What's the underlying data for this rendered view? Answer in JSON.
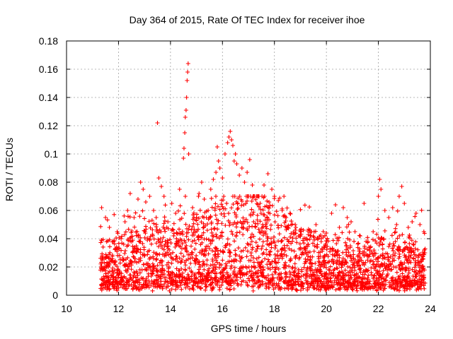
{
  "chart_data": {
    "type": "scatter",
    "title": "Day 364 of 2015, Rate Of TEC Index for receiver ihoe",
    "xlabel": "GPS time / hours",
    "ylabel": "ROTI / TECUs",
    "xlim": [
      10,
      24
    ],
    "ylim": [
      0,
      0.18
    ],
    "xticks": [
      10,
      12,
      14,
      16,
      18,
      20,
      22,
      24
    ],
    "xtick_labels": [
      "10",
      "12",
      "14",
      "16",
      "18",
      "20",
      "22",
      "24"
    ],
    "yticks": [
      0,
      0.02,
      0.04,
      0.06,
      0.08,
      0.1,
      0.12,
      0.14,
      0.16,
      0.18
    ],
    "ytick_labels": [
      "0",
      "0.02",
      "0.04",
      "0.06",
      "0.08",
      "0.1",
      "0.12",
      "0.14",
      "0.16",
      "0.18"
    ],
    "grid": true,
    "marker": "+",
    "marker_color": "#ff0000",
    "series": [
      {
        "name": "ROTI",
        "points": [
          [
            11.35,
            0.062
          ],
          [
            11.5,
            0.055
          ],
          [
            11.65,
            0.048
          ],
          [
            11.8,
            0.038
          ],
          [
            11.95,
            0.045
          ],
          [
            12.1,
            0.04
          ],
          [
            12.25,
            0.052
          ],
          [
            12.35,
            0.06
          ],
          [
            12.45,
            0.072
          ],
          [
            12.6,
            0.055
          ],
          [
            12.75,
            0.068
          ],
          [
            12.85,
            0.08
          ],
          [
            12.95,
            0.075
          ],
          [
            13.05,
            0.066
          ],
          [
            13.2,
            0.07
          ],
          [
            13.35,
            0.06
          ],
          [
            13.45,
            0.055
          ],
          [
            13.5,
            0.122
          ],
          [
            13.55,
            0.083
          ],
          [
            13.65,
            0.077
          ],
          [
            13.75,
            0.07
          ],
          [
            13.9,
            0.052
          ],
          [
            14.05,
            0.065
          ],
          [
            14.2,
            0.058
          ],
          [
            14.35,
            0.075
          ],
          [
            14.5,
            0.097
          ],
          [
            14.52,
            0.104
          ],
          [
            14.55,
            0.115
          ],
          [
            14.57,
            0.126
          ],
          [
            14.6,
            0.131
          ],
          [
            14.62,
            0.14
          ],
          [
            14.64,
            0.152
          ],
          [
            14.66,
            0.158
          ],
          [
            14.68,
            0.164
          ],
          [
            14.7,
            0.1
          ],
          [
            14.85,
            0.062
          ],
          [
            15.0,
            0.055
          ],
          [
            15.1,
            0.072
          ],
          [
            15.2,
            0.08
          ],
          [
            15.3,
            0.068
          ],
          [
            15.45,
            0.06
          ],
          [
            15.55,
            0.075
          ],
          [
            15.65,
            0.082
          ],
          [
            15.75,
            0.087
          ],
          [
            15.8,
            0.105
          ],
          [
            15.85,
            0.095
          ],
          [
            15.9,
            0.09
          ],
          [
            16.0,
            0.083
          ],
          [
            16.1,
            0.1
          ],
          [
            16.2,
            0.108
          ],
          [
            16.25,
            0.112
          ],
          [
            16.3,
            0.116
          ],
          [
            16.35,
            0.11
          ],
          [
            16.4,
            0.106
          ],
          [
            16.45,
            0.095
          ],
          [
            16.5,
            0.1
          ],
          [
            16.55,
            0.093
          ],
          [
            16.65,
            0.085
          ],
          [
            16.75,
            0.09
          ],
          [
            16.85,
            0.08
          ],
          [
            16.95,
            0.087
          ],
          [
            17.05,
            0.096
          ],
          [
            17.15,
            0.078
          ],
          [
            17.3,
            0.07
          ],
          [
            17.45,
            0.065
          ],
          [
            17.6,
            0.078
          ],
          [
            17.75,
            0.086
          ],
          [
            17.9,
            0.075
          ],
          [
            18.0,
            0.07
          ],
          [
            18.15,
            0.067
          ],
          [
            18.3,
            0.06
          ],
          [
            18.45,
            0.055
          ],
          [
            18.6,
            0.058
          ],
          [
            18.8,
            0.05
          ],
          [
            19.0,
            0.045
          ],
          [
            19.2,
            0.04
          ],
          [
            19.4,
            0.042
          ],
          [
            19.6,
            0.05
          ],
          [
            19.8,
            0.038
          ],
          [
            20.0,
            0.044
          ],
          [
            20.2,
            0.058
          ],
          [
            20.35,
            0.064
          ],
          [
            20.5,
            0.048
          ],
          [
            20.65,
            0.062
          ],
          [
            20.8,
            0.055
          ],
          [
            20.95,
            0.052
          ],
          [
            21.1,
            0.045
          ],
          [
            21.3,
            0.042
          ],
          [
            21.45,
            0.065
          ],
          [
            21.6,
            0.038
          ],
          [
            21.8,
            0.045
          ],
          [
            22.0,
            0.07
          ],
          [
            22.05,
            0.082
          ],
          [
            22.1,
            0.075
          ],
          [
            22.25,
            0.06
          ],
          [
            22.4,
            0.055
          ],
          [
            22.55,
            0.062
          ],
          [
            22.7,
            0.05
          ],
          [
            22.8,
            0.07
          ],
          [
            22.9,
            0.077
          ],
          [
            23.0,
            0.065
          ],
          [
            23.15,
            0.048
          ],
          [
            23.3,
            0.052
          ],
          [
            23.45,
            0.058
          ],
          [
            23.6,
            0.05
          ],
          [
            23.75,
            0.045
          ]
        ]
      }
    ],
    "dense_band": {
      "x_range": [
        11.3,
        23.8
      ],
      "y_min": 0.003,
      "y_base": [
        [
          11.3,
          0.016
        ],
        [
          13.0,
          0.02
        ],
        [
          14.5,
          0.022
        ],
        [
          16.0,
          0.028
        ],
        [
          16.8,
          0.034
        ],
        [
          17.5,
          0.03
        ],
        [
          18.5,
          0.022
        ],
        [
          20.0,
          0.018
        ],
        [
          21.5,
          0.014
        ],
        [
          22.2,
          0.018
        ],
        [
          23.8,
          0.016
        ]
      ]
    }
  }
}
